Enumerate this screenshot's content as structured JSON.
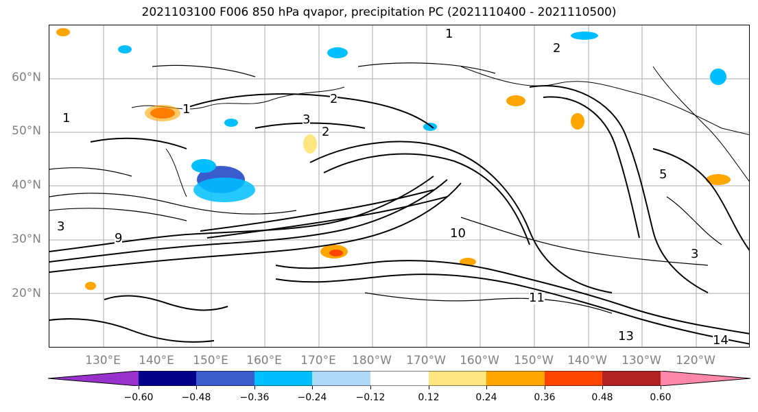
{
  "title": "2021103100 F006 850 hPa qvapor, precipitation PC (2021110400 - 2021110500)",
  "lat_labels": [
    "60°N",
    "50°N",
    "40°N",
    "30°N",
    "20°N"
  ],
  "lon_labels": [
    "130°E",
    "140°E",
    "150°E",
    "160°E",
    "170°E",
    "180°W",
    "170°W",
    "160°W",
    "150°W",
    "140°W",
    "130°W",
    "120°W"
  ],
  "colorbar": {
    "ticks": [
      "−0.60",
      "−0.48",
      "−0.36",
      "−0.24",
      "−0.12",
      "0.12",
      "0.24",
      "0.36",
      "0.48",
      "0.60"
    ],
    "colors": [
      "#9932CC",
      "#00008B",
      "#3A5BCC",
      "#00BFFF",
      "#ADD8F6",
      "#FFFFFF",
      "#FFE680",
      "#FFA500",
      "#FF4500",
      "#B22222",
      "#FF88AA"
    ]
  },
  "contour_labels": [
    "1",
    "2",
    "3",
    "5",
    "9",
    "10",
    "11",
    "13",
    "14"
  ]
}
